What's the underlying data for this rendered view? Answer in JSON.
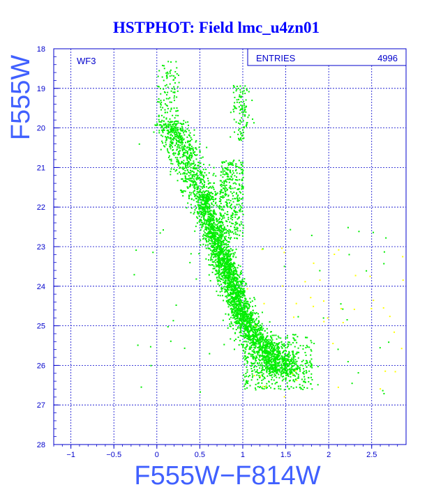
{
  "chart_data": {
    "type": "scatter",
    "title": "HSTPHOT: Field lmc_u4zn01",
    "xlabel": "F555W−F814W",
    "ylabel": "F555W",
    "xlim": [
      -1.2,
      2.9
    ],
    "ylim": [
      28,
      18
    ],
    "x_ticks": [
      "−1",
      "−0.5",
      "0",
      "0.5",
      "1",
      "1.5",
      "2",
      "2.5"
    ],
    "x_tick_values": [
      -1,
      -0.5,
      0,
      0.5,
      1,
      1.5,
      2,
      2.5
    ],
    "y_ticks": [
      "18",
      "19",
      "20",
      "21",
      "22",
      "23",
      "24",
      "25",
      "26",
      "27",
      "28"
    ],
    "y_tick_values": [
      18,
      19,
      20,
      21,
      22,
      23,
      24,
      25,
      26,
      27,
      28
    ],
    "grid": true,
    "annotation": "WF3",
    "stats_box": {
      "label": "ENTRIES",
      "value": "4996"
    },
    "colors": {
      "background": "#ffffff",
      "frame": "#0000cc",
      "grid": "#0000cc",
      "main_points": "#00ee00",
      "outlier_points": "#ffff00",
      "title": "#0000ff",
      "axis_label": "#4060ff"
    },
    "series": [
      {
        "color": "#00ee00",
        "features": [
          {
            "region": "main sequence ridge",
            "x": [
              0.55,
              0.7,
              0.78,
              0.85,
              0.92,
              1.05,
              1.25,
              1.5
            ],
            "y": [
              22,
              23,
              23.5,
              24,
              24.6,
              25.3,
              25.8,
              26.2
            ]
          },
          {
            "region": "red giant branch",
            "x": [
              1.0,
              1.05,
              1.1
            ],
            "y": [
              19,
              19.4,
              19.8
            ]
          }
        ],
        "count_approx": 4996
      }
    ]
  }
}
